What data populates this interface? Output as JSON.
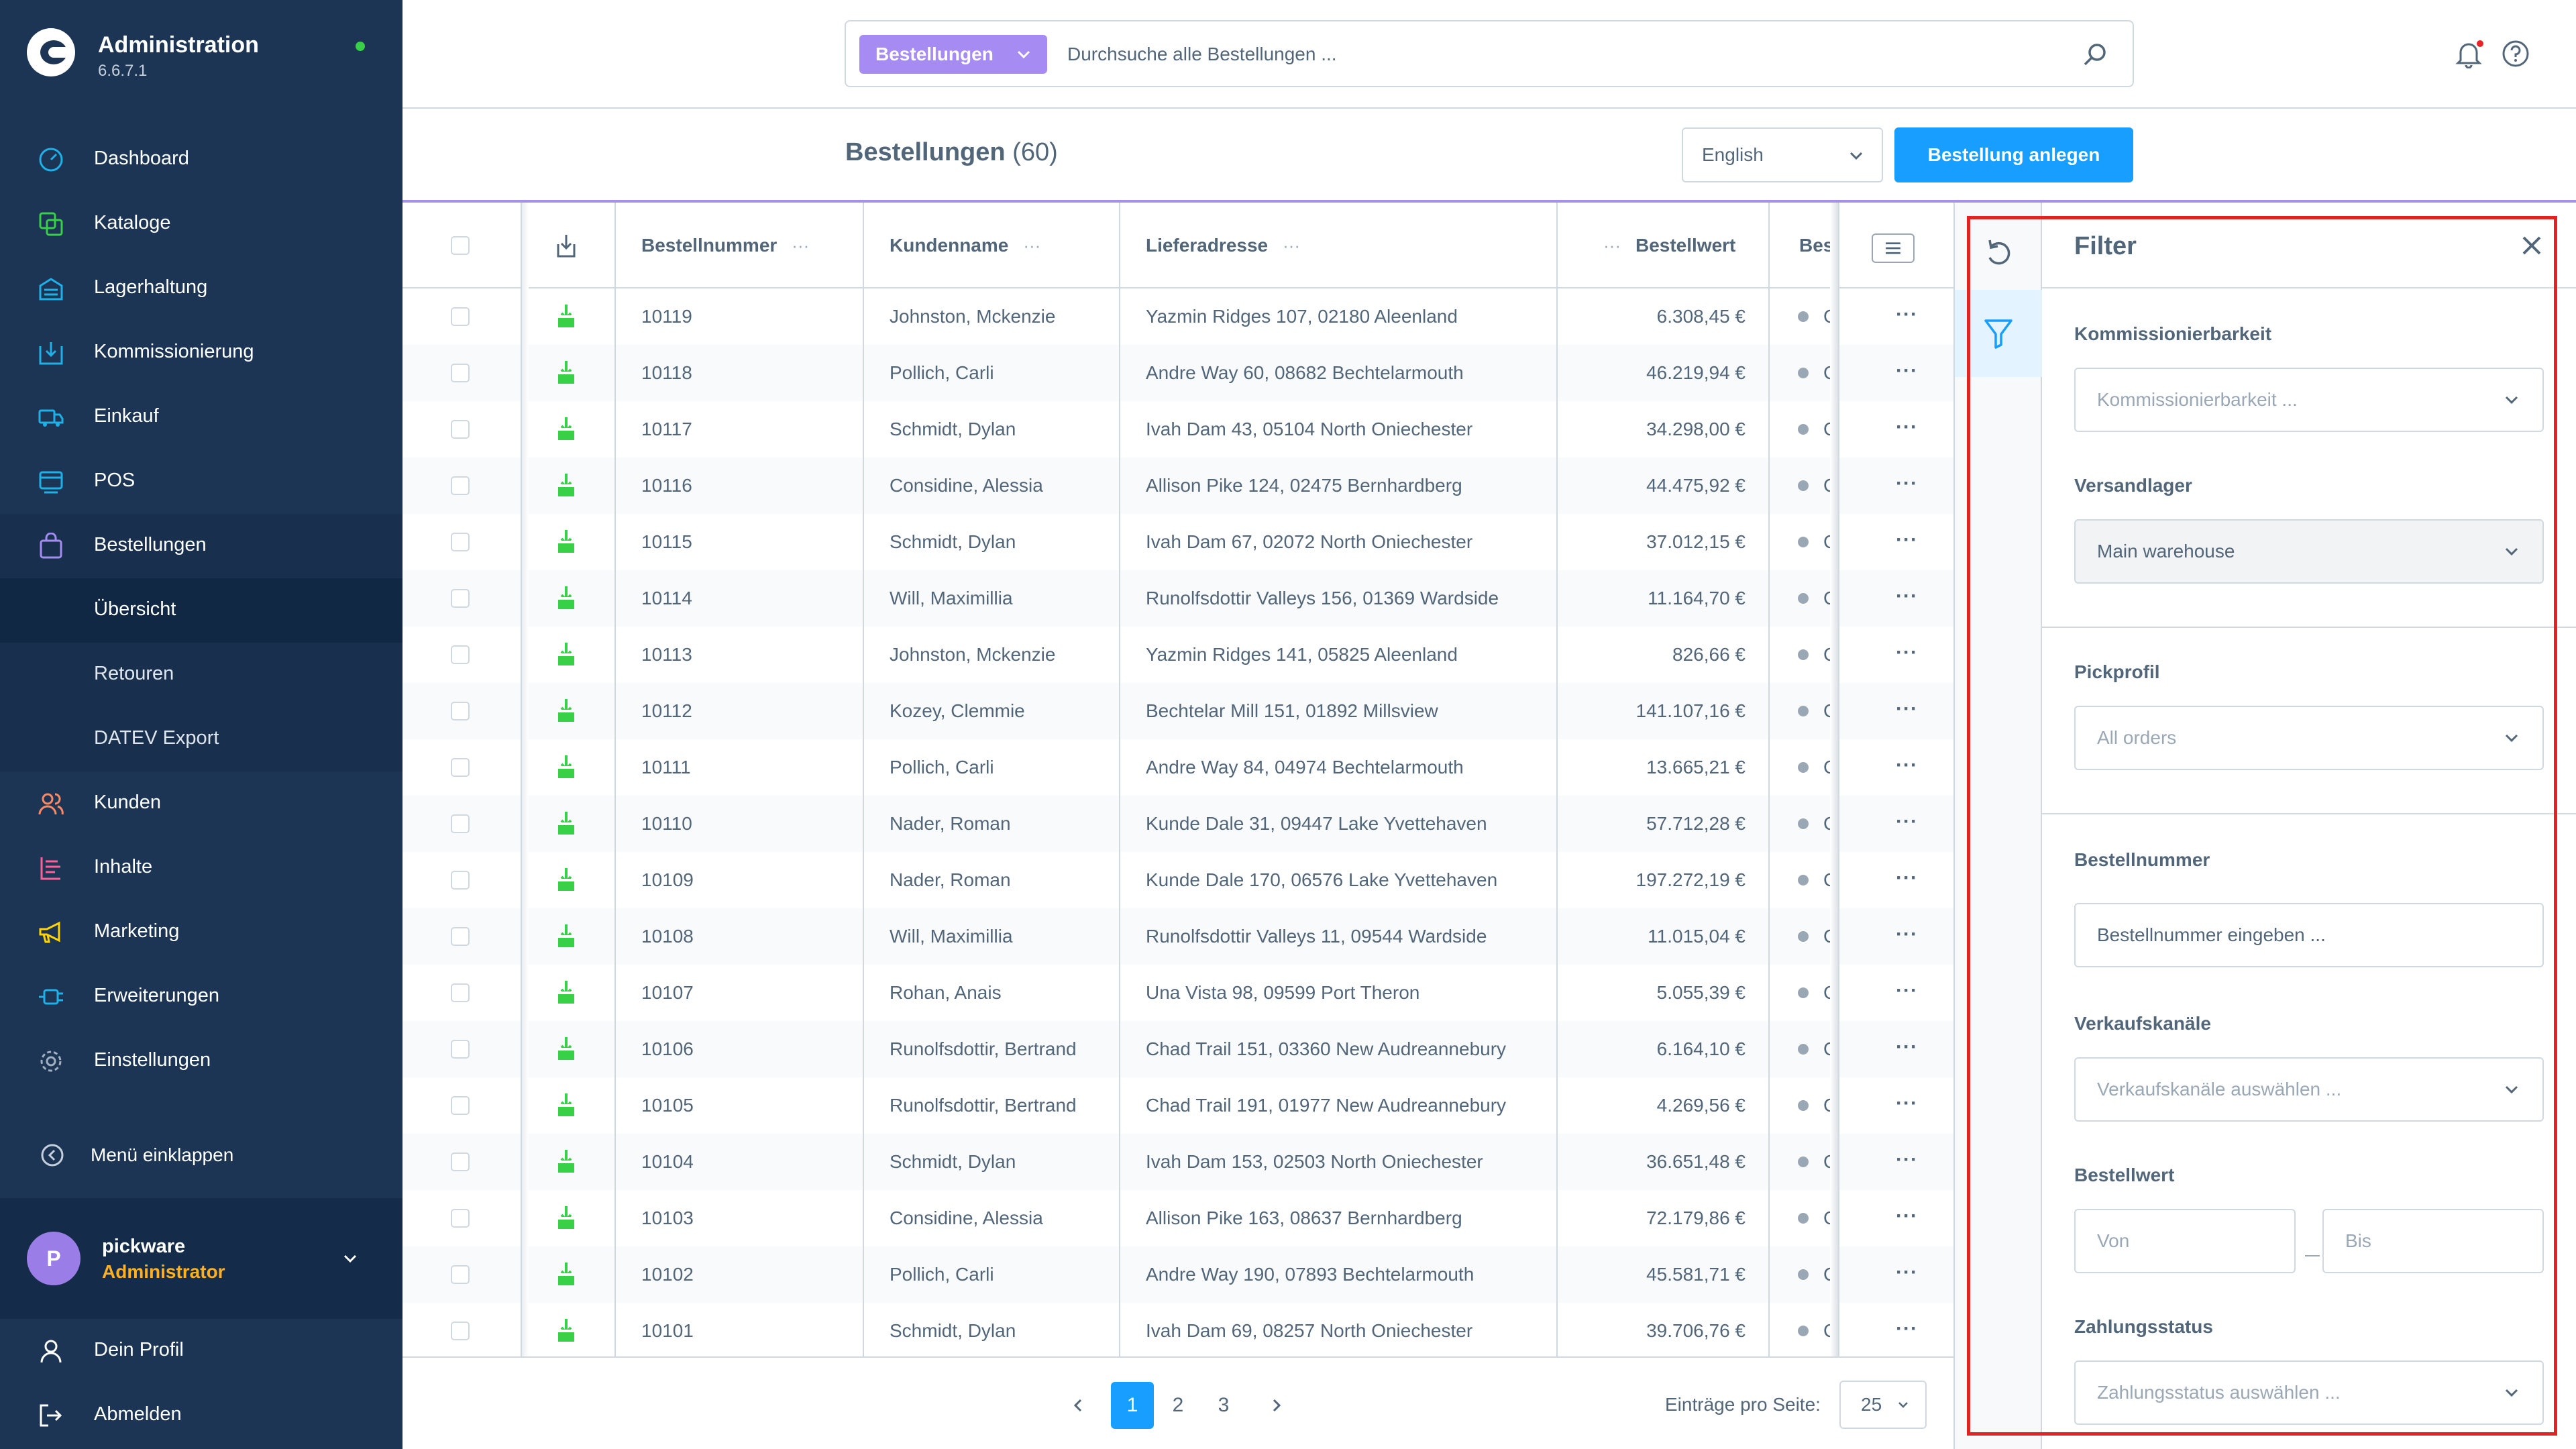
{
  "sidebar": {
    "title": "Administration",
    "version": "6.6.7.1",
    "items": [
      {
        "label": "Dashboard",
        "icon": "dashboard-icon",
        "color": "#1fb0e8"
      },
      {
        "label": "Kataloge",
        "icon": "catalog-icon",
        "color": "#37d046"
      },
      {
        "label": "Lagerhaltung",
        "icon": "warehouse-icon",
        "color": "#1fb0e8"
      },
      {
        "label": "Kommissionierung",
        "icon": "picking-icon",
        "color": "#1fb0e8"
      },
      {
        "label": "Einkauf",
        "icon": "truck-icon",
        "color": "#1fb0e8"
      },
      {
        "label": "POS",
        "icon": "pos-icon",
        "color": "#1fb0e8"
      },
      {
        "label": "Bestellungen",
        "icon": "shopping-bag-icon",
        "color": "#a68bf3"
      },
      {
        "label": "Kunden",
        "icon": "customers-icon",
        "color": "#ff8a65"
      },
      {
        "label": "Inhalte",
        "icon": "content-icon",
        "color": "#ff5f97"
      },
      {
        "label": "Marketing",
        "icon": "megaphone-icon",
        "color": "#ffd400"
      },
      {
        "label": "Erweiterungen",
        "icon": "plug-icon",
        "color": "#1fb0e8"
      },
      {
        "label": "Einstellungen",
        "icon": "gear-icon",
        "color": "#a0b0c0"
      }
    ],
    "subitems": [
      "Übersicht",
      "Retouren",
      "DATEV Export"
    ],
    "collapse_label": "Menü einklappen",
    "user": {
      "initial": "P",
      "name": "pickware",
      "role": "Administrator"
    },
    "profile_label": "Dein Profil",
    "logout_label": "Abmelden"
  },
  "search": {
    "type_label": "Bestellungen",
    "placeholder": "Durchsuche alle Bestellungen ..."
  },
  "header": {
    "title": "Bestellungen",
    "count": "(60)",
    "language": "English",
    "create_label": "Bestellung anlegen"
  },
  "table": {
    "columns": [
      "Bestellnummer",
      "Kundenname",
      "Lieferadresse",
      "Bestellwert",
      "Best"
    ],
    "col_dots": "···",
    "status_letter": "C",
    "row_menu": "···",
    "rows": [
      {
        "num": "10119",
        "name": "Johnston, Mckenzie",
        "addr": "Yazmin Ridges 107, 02180 Aleenland",
        "value": "6.308,45 €"
      },
      {
        "num": "10118",
        "name": "Pollich, Carli",
        "addr": "Andre Way 60, 08682 Bechtelarmouth",
        "value": "46.219,94 €"
      },
      {
        "num": "10117",
        "name": "Schmidt, Dylan",
        "addr": "Ivah Dam 43, 05104 North Oniechester",
        "value": "34.298,00 €"
      },
      {
        "num": "10116",
        "name": "Considine, Alessia",
        "addr": "Allison Pike 124, 02475 Bernhardberg",
        "value": "44.475,92 €"
      },
      {
        "num": "10115",
        "name": "Schmidt, Dylan",
        "addr": "Ivah Dam 67, 02072 North Oniechester",
        "value": "37.012,15 €"
      },
      {
        "num": "10114",
        "name": "Will, Maximillia",
        "addr": "Runolfsdottir Valleys 156, 01369 Wardside",
        "value": "11.164,70 €"
      },
      {
        "num": "10113",
        "name": "Johnston, Mckenzie",
        "addr": "Yazmin Ridges 141, 05825 Aleenland",
        "value": "826,66 €"
      },
      {
        "num": "10112",
        "name": "Kozey, Clemmie",
        "addr": "Bechtelar Mill 151, 01892 Millsview",
        "value": "141.107,16 €"
      },
      {
        "num": "10111",
        "name": "Pollich, Carli",
        "addr": "Andre Way 84, 04974 Bechtelarmouth",
        "value": "13.665,21 €"
      },
      {
        "num": "10110",
        "name": "Nader, Roman",
        "addr": "Kunde Dale 31, 09447 Lake Yvettehaven",
        "value": "57.712,28 €"
      },
      {
        "num": "10109",
        "name": "Nader, Roman",
        "addr": "Kunde Dale 170, 06576 Lake Yvettehaven",
        "value": "197.272,19 €"
      },
      {
        "num": "10108",
        "name": "Will, Maximillia",
        "addr": "Runolfsdottir Valleys 11, 09544 Wardside",
        "value": "11.015,04 €"
      },
      {
        "num": "10107",
        "name": "Rohan, Anais",
        "addr": "Una Vista 98, 09599 Port Theron",
        "value": "5.055,39 €"
      },
      {
        "num": "10106",
        "name": "Runolfsdottir, Bertrand",
        "addr": "Chad Trail 151, 03360 New Audreannebury",
        "value": "6.164,10 €"
      },
      {
        "num": "10105",
        "name": "Runolfsdottir, Bertrand",
        "addr": "Chad Trail 191, 01977 New Audreannebury",
        "value": "4.269,56 €"
      },
      {
        "num": "10104",
        "name": "Schmidt, Dylan",
        "addr": "Ivah Dam 153, 02503 North Oniechester",
        "value": "36.651,48 €"
      },
      {
        "num": "10103",
        "name": "Considine, Alessia",
        "addr": "Allison Pike 163, 08637 Bernhardberg",
        "value": "72.179,86 €"
      },
      {
        "num": "10102",
        "name": "Pollich, Carli",
        "addr": "Andre Way 190, 07893 Bechtelarmouth",
        "value": "45.581,71 €"
      },
      {
        "num": "10101",
        "name": "Schmidt, Dylan",
        "addr": "Ivah Dam 69, 08257 North Oniechester",
        "value": "39.706,76 €"
      }
    ]
  },
  "pagination": {
    "pages": [
      "1",
      "2",
      "3"
    ],
    "current": "1",
    "per_page_label": "Einträge pro Seite:",
    "per_page": "25"
  },
  "filter": {
    "title": "Filter",
    "kommissionierbarkeit": {
      "label": "Kommissionierbarkeit",
      "placeholder": "Kommissionierbarkeit ..."
    },
    "versandlager": {
      "label": "Versandlager",
      "value": "Main warehouse"
    },
    "pickprofil": {
      "label": "Pickprofil",
      "placeholder": "All orders"
    },
    "bestellnummer": {
      "label": "Bestellnummer",
      "placeholder": "Bestellnummer eingeben ..."
    },
    "verkaufskanaele": {
      "label": "Verkaufskanäle",
      "placeholder": "Verkaufskanäle auswählen ..."
    },
    "bestellwert": {
      "label": "Bestellwert",
      "from_placeholder": "Von",
      "to_placeholder": "Bis"
    },
    "zahlungsstatus": {
      "label": "Zahlungsstatus",
      "placeholder": "Zahlungsstatus auswählen ..."
    }
  },
  "colors": {
    "sidebar_bg": "#1c3555",
    "accent_blue": "#189eff",
    "accent_purple": "#a68bf3",
    "highlight_red": "#e02424",
    "pick_green": "#37d046"
  }
}
